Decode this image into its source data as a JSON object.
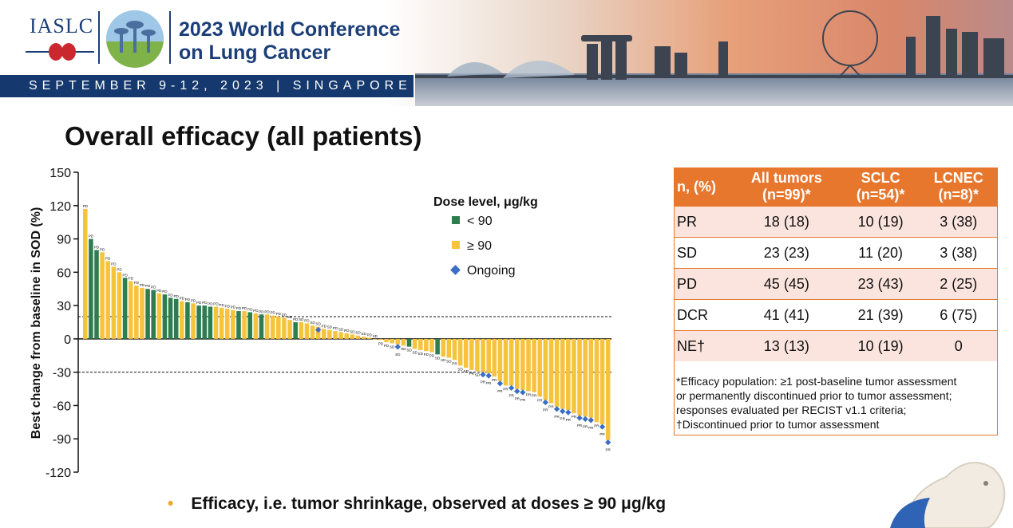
{
  "header": {
    "org": "IASLC",
    "conference_line1": "2023 World Conference",
    "conference_line2": "on Lung Cancer",
    "dates": "SEPTEMBER 9-12, 2023 | SINGAPORE"
  },
  "slide": {
    "title": "Overall efficacy (all patients)",
    "bullet": "Efficacy, i.e. tumor shrinkage, observed at doses ≥ 90 μg/kg"
  },
  "colors": {
    "low_dose": "#2e7d4f",
    "high_dose": "#f6c33c",
    "ongoing": "#3a6fc4",
    "table_header": "#e8772e",
    "table_odd": "#fbe4dd",
    "brand": "#1b3e78"
  },
  "chart_data": {
    "type": "bar",
    "title": "",
    "xlabel": "",
    "ylabel": "Best change from baseline in SOD (%)",
    "ylim": [
      -120,
      150
    ],
    "yticks": [
      "150",
      "120",
      "90",
      "60",
      "30",
      "0",
      "-30",
      "-60",
      "-90",
      "-120"
    ],
    "reference_lines": [
      20,
      -30
    ],
    "legend": {
      "title": "Dose level, μg/kg",
      "items": [
        "< 90",
        "≥ 90",
        "Ongoing"
      ],
      "placement": "top-right"
    },
    "series": [
      {
        "name": "< 90",
        "dose": "lt90"
      },
      {
        "name": "≥ 90",
        "dose": "ge90"
      }
    ],
    "bars": [
      {
        "value": 117,
        "dose": "ge90",
        "label": "PD",
        "ongoing": false
      },
      {
        "value": 90,
        "dose": "lt90",
        "label": "PD",
        "ongoing": false
      },
      {
        "value": 80,
        "dose": "lt90",
        "label": "PD",
        "ongoing": false
      },
      {
        "value": 78,
        "dose": "ge90",
        "label": "PD",
        "ongoing": false
      },
      {
        "value": 70,
        "dose": "ge90",
        "label": "PD",
        "ongoing": false
      },
      {
        "value": 65,
        "dose": "ge90",
        "label": "PD",
        "ongoing": false
      },
      {
        "value": 60,
        "dose": "ge90",
        "label": "PD",
        "ongoing": false
      },
      {
        "value": 55,
        "dose": "lt90",
        "label": "PD",
        "ongoing": false
      },
      {
        "value": 52,
        "dose": "ge90",
        "label": "PD",
        "ongoing": false
      },
      {
        "value": 48,
        "dose": "ge90",
        "label": "PD",
        "ongoing": false
      },
      {
        "value": 46,
        "dose": "ge90",
        "label": "PD",
        "ongoing": false
      },
      {
        "value": 45,
        "dose": "lt90",
        "label": "PD",
        "ongoing": false
      },
      {
        "value": 44,
        "dose": "lt90",
        "label": "PD",
        "ongoing": false
      },
      {
        "value": 41,
        "dose": "ge90",
        "label": "PD",
        "ongoing": false
      },
      {
        "value": 40,
        "dose": "lt90",
        "label": "PD",
        "ongoing": false
      },
      {
        "value": 37,
        "dose": "lt90",
        "label": "PD",
        "ongoing": false
      },
      {
        "value": 36,
        "dose": "lt90",
        "label": "PD",
        "ongoing": false
      },
      {
        "value": 34,
        "dose": "ge90",
        "label": "PD",
        "ongoing": false
      },
      {
        "value": 33,
        "dose": "lt90",
        "label": "PD",
        "ongoing": false
      },
      {
        "value": 32,
        "dose": "ge90",
        "label": "PD",
        "ongoing": false
      },
      {
        "value": 30,
        "dose": "lt90",
        "label": "PD",
        "ongoing": false
      },
      {
        "value": 30,
        "dose": "lt90",
        "label": "PD",
        "ongoing": false
      },
      {
        "value": 29,
        "dose": "lt90",
        "label": "PD",
        "ongoing": false
      },
      {
        "value": 29,
        "dose": "ge90",
        "label": "PD",
        "ongoing": false
      },
      {
        "value": 28,
        "dose": "ge90",
        "label": "PD",
        "ongoing": false
      },
      {
        "value": 27,
        "dose": "ge90",
        "label": "PD",
        "ongoing": false
      },
      {
        "value": 26,
        "dose": "ge90",
        "label": "PD",
        "ongoing": false
      },
      {
        "value": 25,
        "dose": "lt90",
        "label": "PD",
        "ongoing": false
      },
      {
        "value": 25,
        "dose": "ge90",
        "label": "PD",
        "ongoing": false
      },
      {
        "value": 24,
        "dose": "lt90",
        "label": "PD",
        "ongoing": false
      },
      {
        "value": 23,
        "dose": "ge90",
        "label": "PD",
        "ongoing": false
      },
      {
        "value": 22,
        "dose": "lt90",
        "label": "PD",
        "ongoing": false
      },
      {
        "value": 22,
        "dose": "ge90",
        "label": "PD",
        "ongoing": false
      },
      {
        "value": 21,
        "dose": "ge90",
        "label": "PD",
        "ongoing": false
      },
      {
        "value": 20,
        "dose": "ge90",
        "label": "PD",
        "ongoing": false
      },
      {
        "value": 19,
        "dose": "ge90",
        "label": "PD",
        "ongoing": false
      },
      {
        "value": 17,
        "dose": "ge90",
        "label": "SD",
        "ongoing": false
      },
      {
        "value": 15,
        "dose": "lt90",
        "label": "PD",
        "ongoing": false
      },
      {
        "value": 15,
        "dose": "ge90",
        "label": "SD",
        "ongoing": false
      },
      {
        "value": 14,
        "dose": "ge90",
        "label": "PD",
        "ongoing": false
      },
      {
        "value": 12,
        "dose": "ge90",
        "label": "SD",
        "ongoing": false
      },
      {
        "value": 11,
        "dose": "ge90",
        "label": "SD",
        "ongoing": true
      },
      {
        "value": 9,
        "dose": "ge90",
        "label": "PD",
        "ongoing": false
      },
      {
        "value": 8,
        "dose": "ge90",
        "label": "SD",
        "ongoing": false
      },
      {
        "value": 7,
        "dose": "ge90",
        "label": "PD",
        "ongoing": false
      },
      {
        "value": 6,
        "dose": "ge90",
        "label": "SD",
        "ongoing": false
      },
      {
        "value": 5,
        "dose": "ge90",
        "label": "PD",
        "ongoing": false
      },
      {
        "value": 4,
        "dose": "ge90",
        "label": "SD",
        "ongoing": false
      },
      {
        "value": 3,
        "dose": "ge90",
        "label": "SD",
        "ongoing": false
      },
      {
        "value": 2,
        "dose": "ge90",
        "label": "SD",
        "ongoing": false
      },
      {
        "value": 1,
        "dose": "ge90",
        "label": "PD",
        "ongoing": false
      },
      {
        "value": 0,
        "dose": "ge90",
        "label": "SD",
        "ongoing": false
      },
      {
        "value": -1,
        "dose": "ge90",
        "label": "PD",
        "ongoing": false
      },
      {
        "value": -3,
        "dose": "ge90",
        "label": "PD",
        "ongoing": false
      },
      {
        "value": -4,
        "dose": "ge90",
        "label": "SD",
        "ongoing": false
      },
      {
        "value": -5,
        "dose": "ge90",
        "label": "SD",
        "ongoing": true
      },
      {
        "value": -6,
        "dose": "ge90",
        "label": "SD",
        "ongoing": false
      },
      {
        "value": -7,
        "dose": "lt90",
        "label": "SD",
        "ongoing": false
      },
      {
        "value": -9,
        "dose": "ge90",
        "label": "SD",
        "ongoing": false
      },
      {
        "value": -10,
        "dose": "ge90",
        "label": "SD",
        "ongoing": false
      },
      {
        "value": -11,
        "dose": "ge90",
        "label": "PD",
        "ongoing": false
      },
      {
        "value": -12,
        "dose": "ge90",
        "label": "PD",
        "ongoing": false
      },
      {
        "value": -14,
        "dose": "lt90",
        "label": "SD",
        "ongoing": false
      },
      {
        "value": -16,
        "dose": "ge90",
        "label": "SD",
        "ongoing": false
      },
      {
        "value": -17,
        "dose": "ge90",
        "label": "SD",
        "ongoing": false
      },
      {
        "value": -19,
        "dose": "ge90",
        "label": "PR",
        "ongoing": false
      },
      {
        "value": -24,
        "dose": "ge90",
        "label": "SD",
        "ongoing": false
      },
      {
        "value": -26,
        "dose": "ge90",
        "label": "SD",
        "ongoing": false
      },
      {
        "value": -28,
        "dose": "ge90",
        "label": "PR",
        "ongoing": false
      },
      {
        "value": -29,
        "dose": "ge90",
        "label": "SD",
        "ongoing": false
      },
      {
        "value": -30,
        "dose": "ge90",
        "label": "PR",
        "ongoing": true
      },
      {
        "value": -31,
        "dose": "ge90",
        "label": "PR",
        "ongoing": true
      },
      {
        "value": -34,
        "dose": "ge90",
        "label": "PR",
        "ongoing": false
      },
      {
        "value": -38,
        "dose": "ge90",
        "label": "PR",
        "ongoing": true
      },
      {
        "value": -42,
        "dose": "ge90",
        "label": "PR",
        "ongoing": false
      },
      {
        "value": -42,
        "dose": "ge90",
        "label": "PR",
        "ongoing": true
      },
      {
        "value": -45,
        "dose": "ge90",
        "label": "PR",
        "ongoing": true
      },
      {
        "value": -46,
        "dose": "ge90",
        "label": "PR",
        "ongoing": true
      },
      {
        "value": -47,
        "dose": "ge90",
        "label": "PR",
        "ongoing": false
      },
      {
        "value": -48,
        "dose": "ge90",
        "label": "PR",
        "ongoing": false
      },
      {
        "value": -52,
        "dose": "ge90",
        "label": "PR",
        "ongoing": false
      },
      {
        "value": -55,
        "dose": "ge90",
        "label": "PR",
        "ongoing": true
      },
      {
        "value": -58,
        "dose": "ge90",
        "label": "PR",
        "ongoing": false
      },
      {
        "value": -61,
        "dose": "ge90",
        "label": "PR",
        "ongoing": true
      },
      {
        "value": -63,
        "dose": "ge90",
        "label": "PR",
        "ongoing": true
      },
      {
        "value": -64,
        "dose": "ge90",
        "label": "PR",
        "ongoing": true
      },
      {
        "value": -67,
        "dose": "ge90",
        "label": "PR",
        "ongoing": false
      },
      {
        "value": -69,
        "dose": "ge90",
        "label": "PR",
        "ongoing": true
      },
      {
        "value": -70,
        "dose": "ge90",
        "label": "PR",
        "ongoing": true
      },
      {
        "value": -71,
        "dose": "ge90",
        "label": "PR",
        "ongoing": true
      },
      {
        "value": -75,
        "dose": "ge90",
        "label": "PR",
        "ongoing": false
      },
      {
        "value": -77,
        "dose": "ge90",
        "label": "PR",
        "ongoing": true
      },
      {
        "value": -91,
        "dose": "ge90",
        "label": "PR",
        "ongoing": true
      }
    ]
  },
  "efficacy_table": {
    "headers": [
      {
        "line1": "n, (%)",
        "line2": ""
      },
      {
        "line1": "All tumors",
        "line2": "(n=99)*"
      },
      {
        "line1": "SCLC",
        "line2": "(n=54)*"
      },
      {
        "line1": "LCNEC",
        "line2": "(n=8)*"
      }
    ],
    "rows": [
      {
        "label": "PR",
        "all": "18 (18)",
        "sclc": "10 (19)",
        "lcnec": "3 (38)"
      },
      {
        "label": "SD",
        "all": "23 (23)",
        "sclc": "11 (20)",
        "lcnec": "3 (38)"
      },
      {
        "label": "PD",
        "all": "45 (45)",
        "sclc": "23 (43)",
        "lcnec": "2 (25)"
      },
      {
        "label": "DCR",
        "all": "41 (41)",
        "sclc": "21 (39)",
        "lcnec": "6 (75)"
      },
      {
        "label": "NE†",
        "all": "13 (13)",
        "sclc": "10 (19)",
        "lcnec": "0"
      }
    ],
    "footnote": [
      "*Efficacy population: ≥1 post-baseline tumor assessment",
      " or permanently discontinued prior to tumor assessment;",
      " responses evaluated per RECIST v1.1 criteria;",
      " †Discontinued prior to tumor assessment"
    ]
  }
}
